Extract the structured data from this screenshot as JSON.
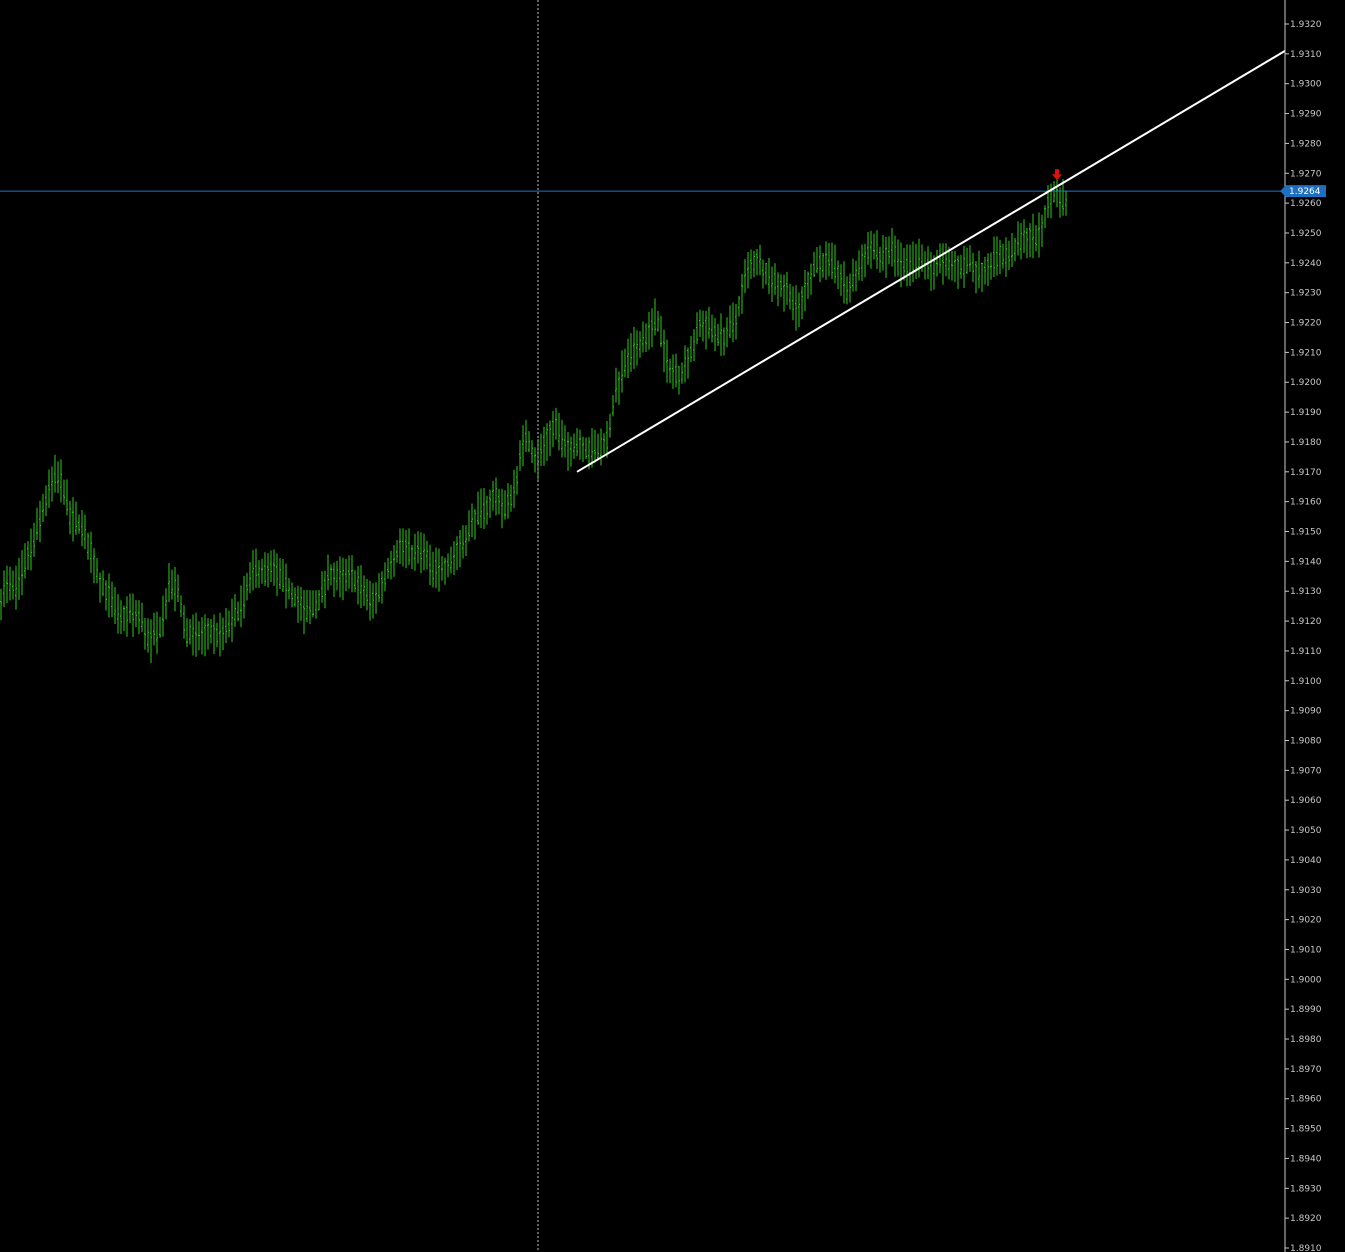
{
  "chart_data": {
    "type": "line",
    "style": "ohlc-bars",
    "y_axis": {
      "ylim": [
        1.891,
        1.932
      ],
      "ticks": [
        "1.9320",
        "1.9310",
        "1.9300",
        "1.9290",
        "1.9280",
        "1.9270",
        "1.9260",
        "1.9250",
        "1.9240",
        "1.9230",
        "1.9220",
        "1.9210",
        "1.9200",
        "1.9190",
        "1.9180",
        "1.9170",
        "1.9160",
        "1.9150",
        "1.9140",
        "1.9130",
        "1.9120",
        "1.9110",
        "1.9100",
        "1.9090",
        "1.9080",
        "1.9070",
        "1.9060",
        "1.9050",
        "1.9040",
        "1.9030",
        "1.9020",
        "1.9010",
        "1.9000",
        "1.8990",
        "1.8980",
        "1.8970",
        "1.8960",
        "1.8950",
        "1.8940",
        "1.8930",
        "1.8920",
        "1.8910"
      ],
      "grid": false,
      "position": "right"
    },
    "current_price": {
      "value": 1.9264,
      "label": "1.9264"
    },
    "price_series": {
      "name": "",
      "bar_color": "#2ecc1a",
      "anchors": [
        [
          0,
          1.9127
        ],
        [
          6,
          1.9132
        ],
        [
          15,
          1.913
        ],
        [
          24,
          1.9138
        ],
        [
          35,
          1.9148
        ],
        [
          45,
          1.916
        ],
        [
          55,
          1.9168
        ],
        [
          62,
          1.9167
        ],
        [
          70,
          1.9155
        ],
        [
          80,
          1.9152
        ],
        [
          92,
          1.9143
        ],
        [
          100,
          1.9133
        ],
        [
          110,
          1.9128
        ],
        [
          120,
          1.912
        ],
        [
          130,
          1.9123
        ],
        [
          140,
          1.9121
        ],
        [
          150,
          1.9113
        ],
        [
          160,
          1.9118
        ],
        [
          170,
          1.9133
        ],
        [
          178,
          1.913
        ],
        [
          186,
          1.9116
        ],
        [
          196,
          1.9115
        ],
        [
          210,
          1.9116
        ],
        [
          222,
          1.9115
        ],
        [
          234,
          1.9121
        ],
        [
          245,
          1.9128
        ],
        [
          255,
          1.9138
        ],
        [
          265,
          1.9136
        ],
        [
          275,
          1.9137
        ],
        [
          285,
          1.9132
        ],
        [
          295,
          1.9128
        ],
        [
          305,
          1.9123
        ],
        [
          318,
          1.9126
        ],
        [
          330,
          1.9136
        ],
        [
          342,
          1.9134
        ],
        [
          352,
          1.9135
        ],
        [
          362,
          1.9131
        ],
        [
          372,
          1.9126
        ],
        [
          382,
          1.9132
        ],
        [
          392,
          1.9141
        ],
        [
          402,
          1.9146
        ],
        [
          412,
          1.9142
        ],
        [
          422,
          1.9144
        ],
        [
          432,
          1.9137
        ],
        [
          445,
          1.9138
        ],
        [
          455,
          1.9142
        ],
        [
          466,
          1.9149
        ],
        [
          476,
          1.9155
        ],
        [
          486,
          1.9158
        ],
        [
          496,
          1.9162
        ],
        [
          506,
          1.9157
        ],
        [
          516,
          1.9167
        ],
        [
          526,
          1.9183
        ],
        [
          536,
          1.9173
        ],
        [
          546,
          1.9181
        ],
        [
          556,
          1.9186
        ],
        [
          566,
          1.9177
        ],
        [
          576,
          1.918
        ],
        [
          590,
          1.9177
        ],
        [
          600,
          1.9178
        ],
        [
          608,
          1.9181
        ],
        [
          615,
          1.9196
        ],
        [
          625,
          1.9206
        ],
        [
          640,
          1.9214
        ],
        [
          650,
          1.9217
        ],
        [
          657,
          1.9222
        ],
        [
          668,
          1.9205
        ],
        [
          680,
          1.9202
        ],
        [
          690,
          1.921
        ],
        [
          702,
          1.922
        ],
        [
          712,
          1.9217
        ],
        [
          724,
          1.9215
        ],
        [
          736,
          1.9221
        ],
        [
          746,
          1.9236
        ],
        [
          756,
          1.9241
        ],
        [
          768,
          1.9236
        ],
        [
          780,
          1.9232
        ],
        [
          790,
          1.923
        ],
        [
          798,
          1.9223
        ],
        [
          806,
          1.9232
        ],
        [
          816,
          1.924
        ],
        [
          826,
          1.924
        ],
        [
          836,
          1.9238
        ],
        [
          848,
          1.923
        ],
        [
          858,
          1.9238
        ],
        [
          870,
          1.9246
        ],
        [
          882,
          1.9241
        ],
        [
          892,
          1.9245
        ],
        [
          904,
          1.9238
        ],
        [
          918,
          1.9241
        ],
        [
          930,
          1.9238
        ],
        [
          940,
          1.924
        ],
        [
          955,
          1.9238
        ],
        [
          970,
          1.924
        ],
        [
          980,
          1.9236
        ],
        [
          990,
          1.924
        ],
        [
          1000,
          1.9243
        ],
        [
          1010,
          1.9242
        ],
        [
          1020,
          1.9247
        ],
        [
          1032,
          1.9249
        ],
        [
          1040,
          1.9249
        ],
        [
          1048,
          1.9259
        ],
        [
          1055,
          1.9264
        ],
        [
          1060,
          1.9262
        ],
        [
          1066,
          1.926
        ]
      ]
    },
    "trendline": {
      "start": [
        577,
        1.917
      ],
      "end": [
        1285,
        1.9311
      ],
      "color": "#ffffff"
    },
    "crosshair_vline_x": 538,
    "signal_arrow": {
      "direction": "down",
      "color": "#e01010",
      "price": 1.9268
    },
    "colors": {
      "background": "#000000",
      "price_line": "#1e78c8",
      "price_tag": "#1e6fbf",
      "axis_text": "#c8c8c8"
    }
  }
}
